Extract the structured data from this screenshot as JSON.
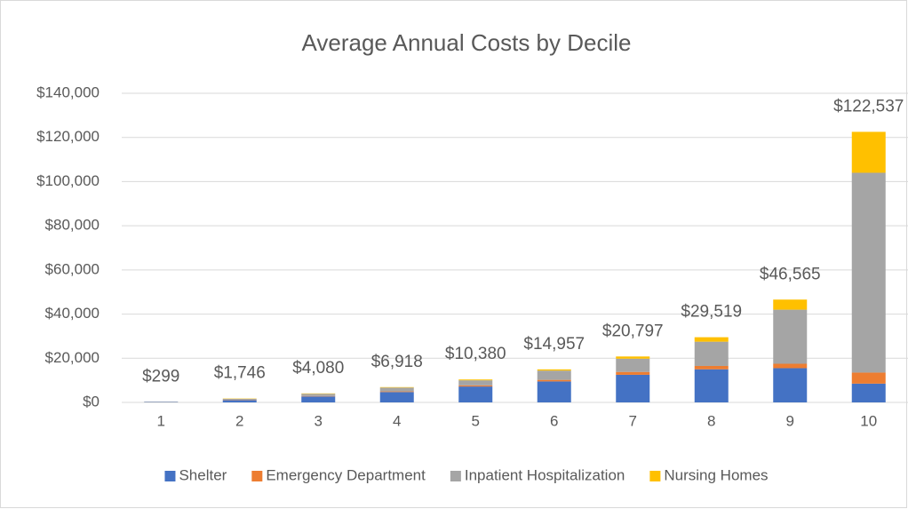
{
  "chart_data": {
    "type": "stacked_bar",
    "title": "Average Annual Costs by Decile",
    "categories": [
      "1",
      "2",
      "3",
      "4",
      "5",
      "6",
      "7",
      "8",
      "9",
      "10"
    ],
    "series": [
      {
        "name": "Shelter",
        "color": "#4472c4",
        "values": [
          200,
          1000,
          2700,
          4700,
          7200,
          9500,
          12500,
          15000,
          15500,
          8500
        ]
      },
      {
        "name": "Emergency Department",
        "color": "#ed7d31",
        "values": [
          20,
          150,
          200,
          300,
          500,
          700,
          1300,
          1500,
          2000,
          5000
        ]
      },
      {
        "name": "Inpatient Hospitalization",
        "color": "#a5a5a5",
        "values": [
          50,
          450,
          1000,
          1700,
          2300,
          4200,
          6000,
          11000,
          24500,
          90500
        ]
      },
      {
        "name": "Nursing Homes",
        "color": "#ffc000",
        "values": [
          29,
          146,
          180,
          218,
          380,
          557,
          997,
          2019,
          4565,
          18537
        ]
      }
    ],
    "totals": [
      299,
      1746,
      4080,
      6918,
      10380,
      14957,
      20797,
      29519,
      46565,
      122537
    ],
    "total_labels": [
      "$299",
      "$1,746",
      "$4,080",
      "$6,918",
      "$10,380",
      "$14,957",
      "$20,797",
      "$29,519",
      "$46,565",
      "$122,537"
    ],
    "ylim": [
      0,
      140000
    ],
    "yticks": [
      {
        "value": 0,
        "label": "$0"
      },
      {
        "value": 20000,
        "label": "$20,000"
      },
      {
        "value": 40000,
        "label": "$40,000"
      },
      {
        "value": 60000,
        "label": "$60,000"
      },
      {
        "value": 80000,
        "label": "$80,000"
      },
      {
        "value": 100000,
        "label": "$100,000"
      },
      {
        "value": 120000,
        "label": "$120,000"
      },
      {
        "value": 140000,
        "label": "$140,000"
      }
    ],
    "grid": true,
    "legend": "bottom"
  }
}
